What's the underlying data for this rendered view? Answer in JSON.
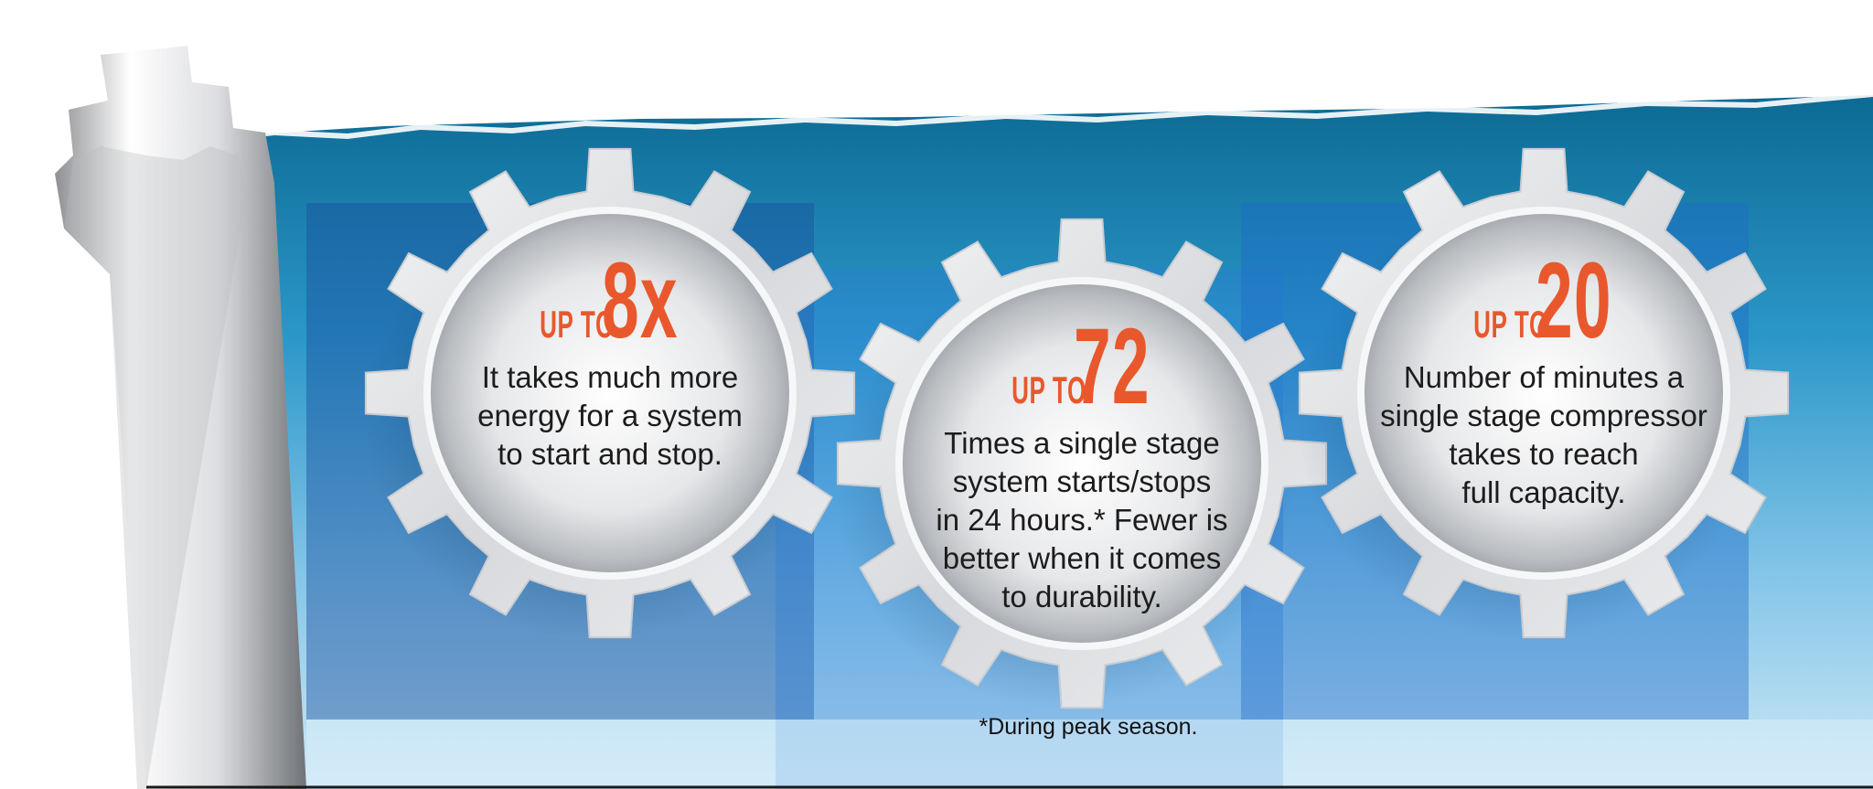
{
  "palette": {
    "accent": "#e8582c",
    "sky_dark": "#0f6f98",
    "sky_light": "#c5e4f6",
    "panel_blue": "#1d5fbf",
    "gear_metal": "#e4e6e8"
  },
  "stats": [
    {
      "prefix": "UP TO",
      "value": "8x",
      "lines": [
        "It takes much more",
        "energy for a system",
        "to start and stop."
      ]
    },
    {
      "prefix": "UP TO",
      "value": "72",
      "lines": [
        "Times a single stage",
        "system starts/stops",
        "in 24 hours.* Fewer is",
        "better when it comes",
        "to durability."
      ]
    },
    {
      "prefix": "UP TO",
      "value": "20",
      "lines": [
        "Number of minutes a",
        "single stage compressor",
        "takes to reach",
        "full capacity."
      ]
    }
  ],
  "footnote": "*During peak season."
}
